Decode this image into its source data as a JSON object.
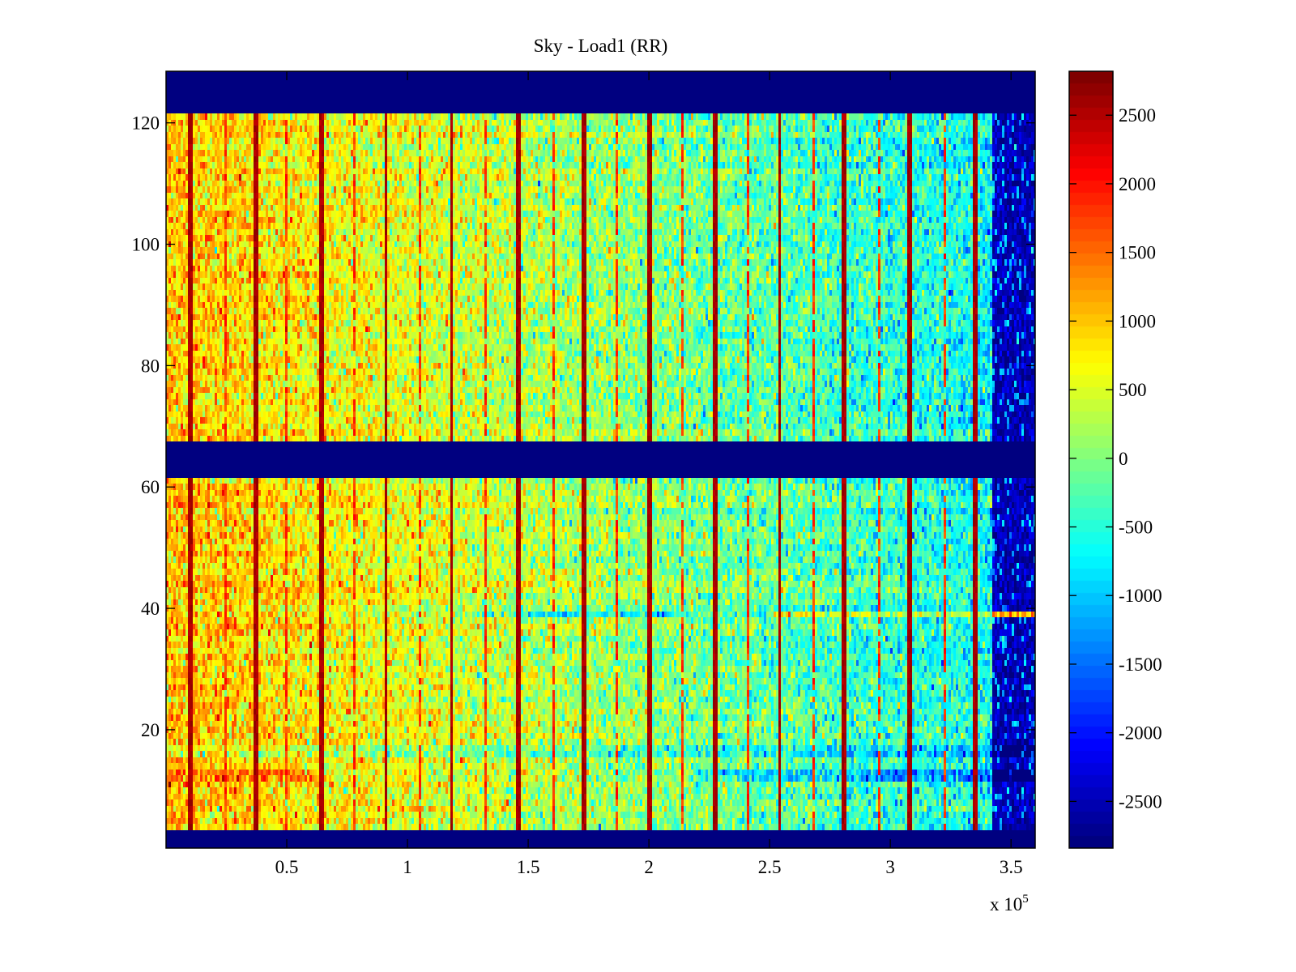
{
  "chart_data": {
    "type": "heatmap",
    "title": "Sky - Load1 (RR)",
    "xlabel": "",
    "ylabel": "",
    "x_exponent_label": "x 10",
    "x_exponent_power": "5",
    "xlim": [
      0,
      360000
    ],
    "ylim": [
      0.5,
      128.5
    ],
    "x_ticks": [
      50000,
      100000,
      150000,
      200000,
      250000,
      300000,
      350000
    ],
    "x_tick_labels": [
      "0.5",
      "1",
      "1.5",
      "2",
      "2.5",
      "3",
      "3.5"
    ],
    "y_ticks": [
      20,
      40,
      60,
      80,
      100,
      120
    ],
    "y_tick_labels": [
      "20",
      "40",
      "60",
      "80",
      "100",
      "120"
    ],
    "colormap": "jet",
    "clim": [
      -2840,
      2820
    ],
    "colorbar": {
      "ticks": [
        2500,
        2000,
        1500,
        1000,
        500,
        0,
        -500,
        -1000,
        -1500,
        -2000,
        -2500
      ],
      "tick_labels": [
        "2500",
        "2000",
        "1500",
        "1000",
        "500",
        "0",
        "-500",
        "-1000",
        "-1500",
        "-2000",
        "-2500"
      ],
      "location": "right"
    },
    "rows": 128,
    "masked_row_ranges": [
      [
        1,
        3
      ],
      [
        62,
        67
      ],
      [
        122,
        128
      ]
    ],
    "masked_value": -2840,
    "trend": {
      "description": "values decrease from left (~+1000) to right (~-700), then drop sharply to ~-2500 beyond x≈342000",
      "left_mean": 1000,
      "right_mean": -700,
      "edge_drop_start_x": 342000,
      "edge_value": -2500
    },
    "spike_columns_x": [
      10000,
      37000,
      64000,
      91000,
      118000,
      146000,
      173000,
      200000,
      227000,
      254000,
      281000,
      308000,
      335000
    ],
    "spike_value": 2700,
    "minor_spike_columns_x": [
      24000,
      50000,
      78000,
      105000,
      132000,
      160000,
      187000,
      214000,
      241000,
      268000,
      295000,
      322000
    ],
    "anomalous_rows": [
      {
        "row": 39,
        "note": "blue band mid-range x≈1.0e5–2.0e5, yellow/red toward right edge"
      },
      {
        "row": 12,
        "note": "warmer on left, cooler (blue) on right"
      },
      {
        "row": 16,
        "note": "cool band"
      }
    ],
    "grid": false,
    "legend": "none"
  }
}
